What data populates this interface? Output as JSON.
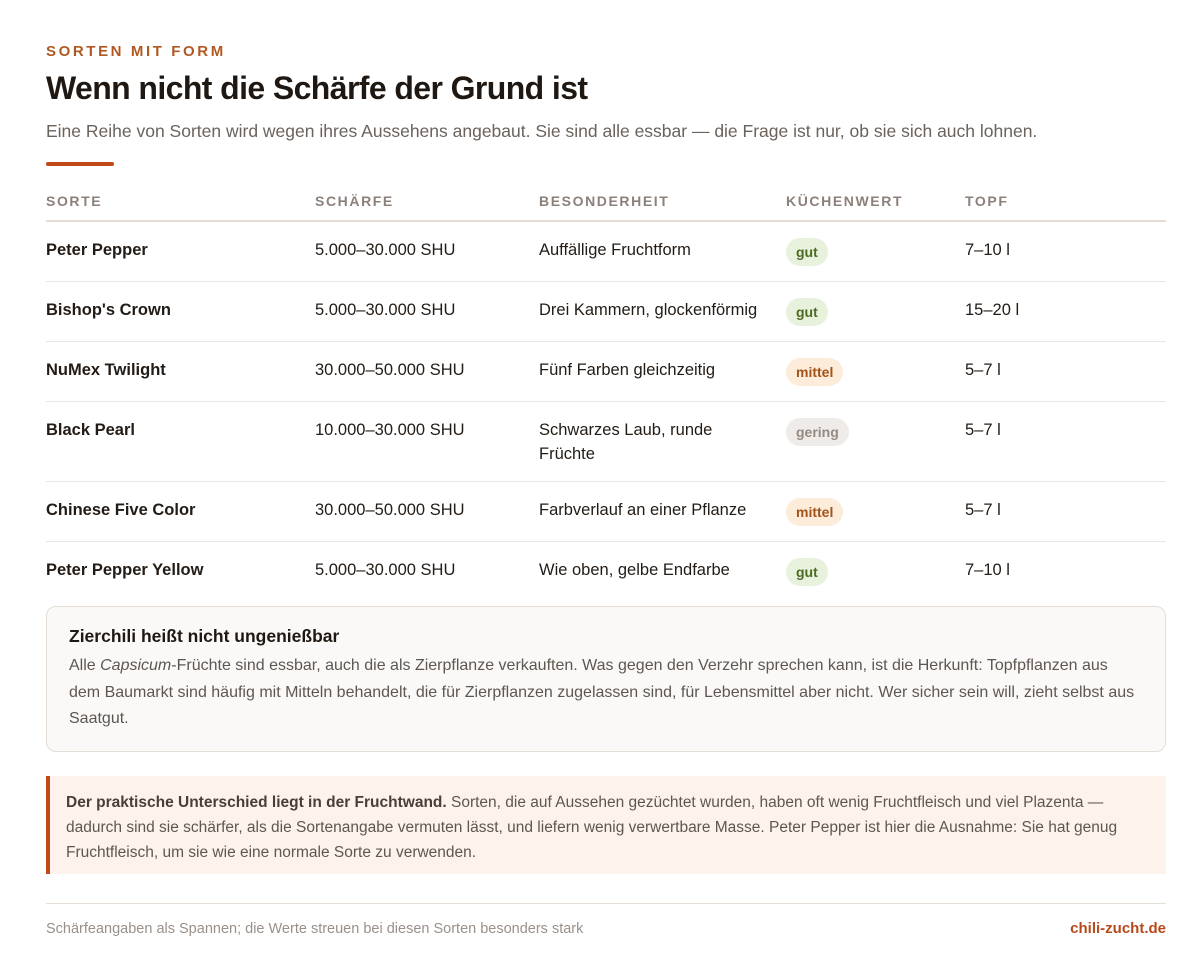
{
  "header": {
    "eyebrow": "Sorten mit Form",
    "title": "Wenn nicht die Schärfe der Grund ist",
    "lead": "Eine Reihe von Sorten wird wegen ihres Aussehens angebaut. Sie sind alle essbar — die Frage ist nur, ob sie sich auch lohnen."
  },
  "table": {
    "columns": [
      "Sorte",
      "Schärfe",
      "Besonderheit",
      "Küchenwert",
      "Topf"
    ],
    "rows": [
      {
        "name": "Peter Pepper",
        "heat": "5.000–30.000 SHU",
        "feature": "Auffällige Fruchtform",
        "value": "gut",
        "value_level": "gut",
        "pot": "7–10 l"
      },
      {
        "name": "Bishop's Crown",
        "heat": "5.000–30.000 SHU",
        "feature": "Drei Kammern, glockenförmig",
        "value": "gut",
        "value_level": "gut",
        "pot": "15–20 l"
      },
      {
        "name": "NuMex Twilight",
        "heat": "30.000–50.000 SHU",
        "feature": "Fünf Farben gleichzeitig",
        "value": "mittel",
        "value_level": "mittel",
        "pot": "5–7 l"
      },
      {
        "name": "Black Pearl",
        "heat": "10.000–30.000 SHU",
        "feature": "Schwarzes Laub, runde Früchte",
        "value": "gering",
        "value_level": "gering",
        "pot": "5–7 l"
      },
      {
        "name": "Chinese Five Color",
        "heat": "30.000–50.000 SHU",
        "feature": "Farbverlauf an einer Pflanze",
        "value": "mittel",
        "value_level": "mittel",
        "pot": "5–7 l"
      },
      {
        "name": "Peter Pepper Yellow",
        "heat": "5.000–30.000 SHU",
        "feature": "Wie oben, gelbe Endfarbe",
        "value": "gut",
        "value_level": "gut",
        "pot": "7–10 l"
      }
    ]
  },
  "note": {
    "title": "Zierchili heißt nicht ungenießbar",
    "body_prefix": "Alle ",
    "body_italic": "Capsicum",
    "body_rest": "-Früchte sind essbar, auch die als Zierpflanze verkauften. Was gegen den Verzehr sprechen kann, ist die Herkunft: Topfpflanzen aus dem Baumarkt sind häufig mit Mitteln behandelt, die für Zierpflanzen zugelassen sind, für Lebensmittel aber nicht. Wer sicher sein will, zieht selbst aus Saatgut."
  },
  "callout": {
    "strong": "Der praktische Unterschied liegt in der Fruchtwand.",
    "text": " Sorten, die auf Aussehen gezüchtet wurden, haben oft wenig Fruchtfleisch und viel Plazenta — dadurch sind sie schärfer, als die Sortenangabe vermuten lässt, und liefern wenig verwertbare Masse. Peter Pepper ist hier die Ausnahme: Sie hat genug Fruchtfleisch, um sie wie eine normale Sorte zu verwenden."
  },
  "footer": {
    "note": "Schärfeangaben als Spannen; die Werte streuen bei diesen Sorten besonders stark",
    "brand": "chili-zucht.de"
  }
}
